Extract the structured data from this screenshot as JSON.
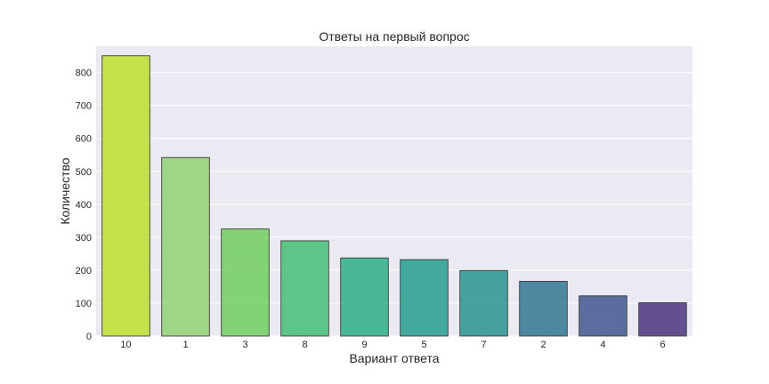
{
  "chart_data": {
    "type": "bar",
    "title": "Ответы на первый вопрос",
    "xlabel": "Вариант ответа",
    "ylabel": "Количество",
    "categories": [
      "10",
      "1",
      "3",
      "8",
      "9",
      "5",
      "7",
      "2",
      "4",
      "6"
    ],
    "values": [
      851,
      542,
      325,
      289,
      237,
      232,
      199,
      166,
      122,
      101
    ],
    "colors": [
      "#bddf26",
      "#8fd16e",
      "#6ccd5a",
      "#40bd72",
      "#25ac82",
      "#1f9a8a",
      "#21918c",
      "#2c718e",
      "#3b528b",
      "#472d7b"
    ],
    "ylim": [
      0,
      880
    ],
    "yticks": [
      0,
      100,
      200,
      300,
      400,
      500,
      600,
      700,
      800
    ],
    "grid": true,
    "background": "#eaeaf2"
  }
}
